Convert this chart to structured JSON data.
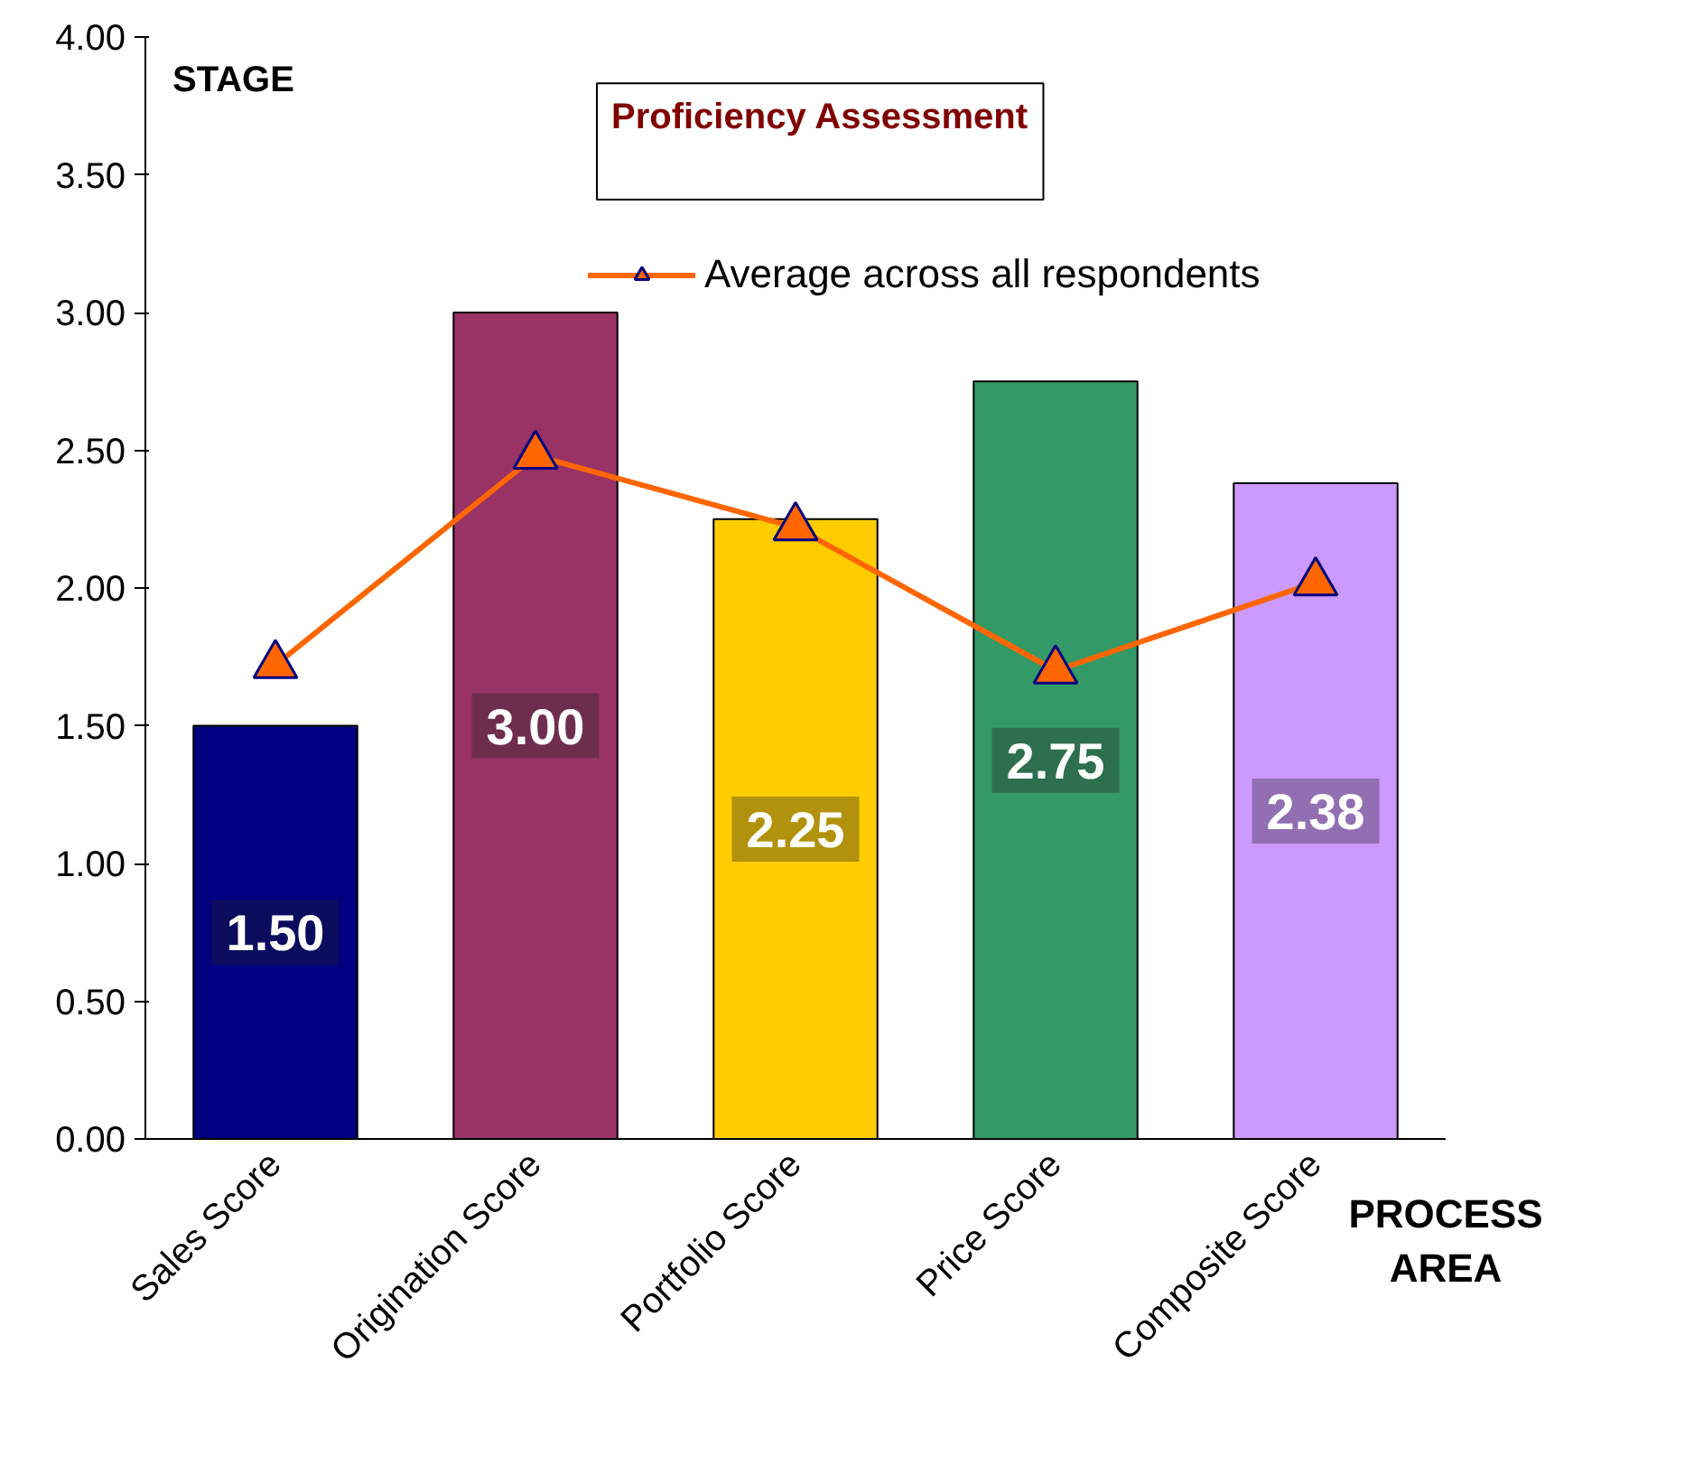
{
  "chart_data": {
    "type": "bar",
    "title": "Proficiency Assessment",
    "ylabel": "STAGE",
    "xlabel": "PROCESS AREA",
    "categories": [
      "Sales Score",
      "Origination Score",
      "Portfolio Score",
      "Price Score",
      "Composite Score"
    ],
    "series": [
      {
        "type": "bar",
        "colors": [
          "#000080",
          "#993366",
          "#ffcc00",
          "#339966",
          "#cc99ff"
        ],
        "values": [
          1.5,
          3.0,
          2.25,
          2.75,
          2.38
        ],
        "value_labels": [
          "1.50",
          "3.00",
          "2.25",
          "2.75",
          "2.38"
        ]
      },
      {
        "type": "line",
        "name": "Average across all respondents",
        "color": "#ff6600",
        "values": [
          1.72,
          2.48,
          2.22,
          1.7,
          2.02
        ],
        "marker": "triangle"
      }
    ],
    "ylim": [
      0,
      4
    ],
    "yticks": [
      {
        "value": 0,
        "label": "0.00"
      },
      {
        "value": 0.5,
        "label": "0.50"
      },
      {
        "value": 1,
        "label": "1.00"
      },
      {
        "value": 1.5,
        "label": "1.50"
      },
      {
        "value": 2,
        "label": "2.00"
      },
      {
        "value": 2.5,
        "label": "2.50"
      },
      {
        "value": 3,
        "label": "3.00"
      },
      {
        "value": 3.5,
        "label": "3.50"
      },
      {
        "value": 4,
        "label": "4.00"
      }
    ],
    "grid": false,
    "legend": "top"
  }
}
